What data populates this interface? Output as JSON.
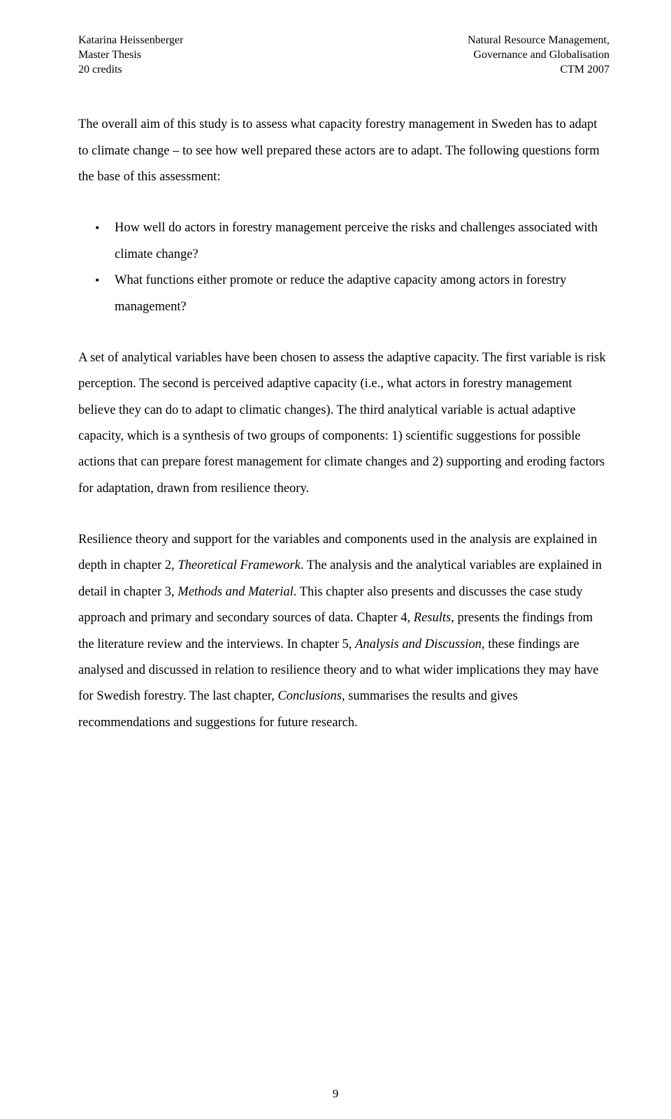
{
  "header": {
    "left": {
      "line1": "Katarina Heissenberger",
      "line2": "Master Thesis",
      "line3": "20 credits"
    },
    "right": {
      "line1": "Natural Resource Management,",
      "line2": "Governance and Globalisation",
      "line3": "CTM 2007"
    }
  },
  "para1": "The overall aim of this study is to assess what capacity forestry management in Sweden has to adapt to climate change – to see how well prepared these actors are to adapt. The following questions form the base of this assessment:",
  "bullets": [
    "How well do actors in forestry management perceive the risks and challenges associated with climate change?",
    "What functions either promote or reduce the adaptive capacity among actors in forestry management?"
  ],
  "para2": "A set of analytical variables have been chosen to assess the adaptive capacity. The first variable is risk perception. The second is perceived adaptive capacity (i.e., what actors in forestry management believe they can do to adapt to climatic changes). The third analytical variable is actual adaptive capacity, which is a synthesis of two groups of components: 1) scientific suggestions for possible actions that can prepare forest management for climate changes and 2) supporting and eroding factors for adaptation, drawn from resilience theory.",
  "para3": {
    "t1": "Resilience theory and support for the variables and components used in the analysis are explained in depth in chapter 2, ",
    "i1": "Theoretical Framework",
    "t2": ". The analysis and the analytical variables are explained in detail in chapter 3, ",
    "i2": "Methods and Material",
    "t3": ". This chapter also presents and discusses the case study approach and primary and secondary sources of data. Chapter 4, ",
    "i3": "Results",
    "t4": ", presents the findings from the literature review and the interviews. In chapter 5, ",
    "i4": "Analysis and Discussion,",
    "t5": " these findings are analysed and discussed in relation to resilience theory and to what wider implications they may have for Swedish forestry. The last chapter, ",
    "i5": "Conclusions,",
    "t6": " summarises the results and gives recommendations and suggestions for future research."
  },
  "pageNumber": "9"
}
